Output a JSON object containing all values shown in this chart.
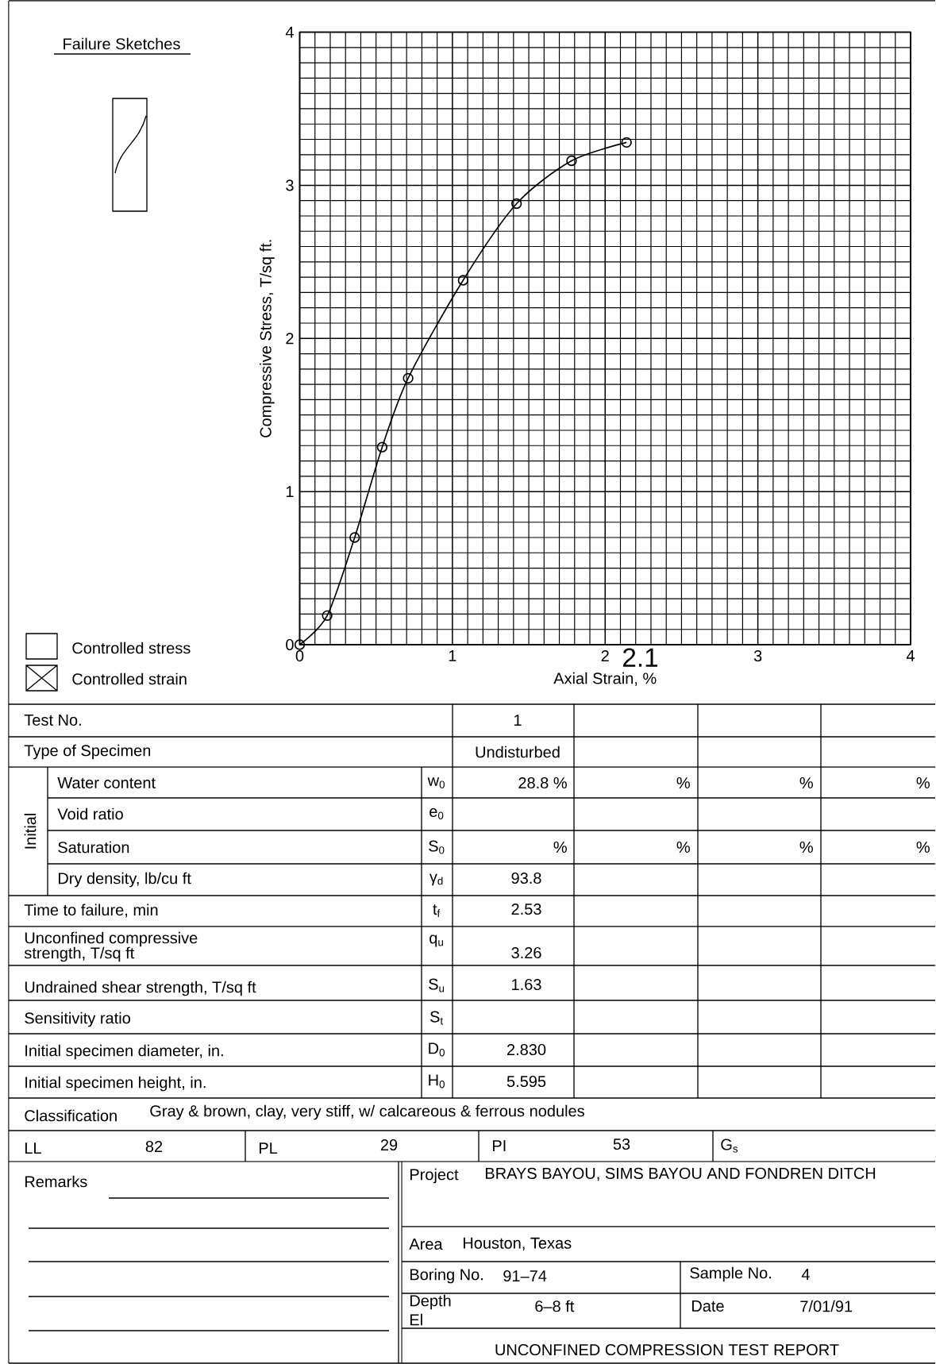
{
  "chart_data": {
    "type": "line",
    "xlabel": "Axial Strain, %",
    "ylabel": "Compressive Stress, T/sq ft.",
    "x": [
      0,
      0.18,
      0.36,
      0.54,
      0.71,
      1.07,
      1.42,
      1.78,
      2.14
    ],
    "series": [
      {
        "color": "#000000",
        "values": [
          0,
          0.19,
          0.7,
          1.29,
          1.74,
          2.38,
          2.88,
          3.16,
          3.28
        ]
      }
    ],
    "marker": "circle",
    "line_style": "solid",
    "grid": true,
    "xlim": [
      0,
      4
    ],
    "ylim": [
      0,
      4
    ],
    "xticks": [
      0,
      1,
      2,
      3,
      4
    ],
    "yticks": [
      0,
      1,
      2,
      3,
      4
    ],
    "annotations": [
      "Failure Sketches",
      "Controlled stress",
      "Controlled strain",
      "Test No.",
      "1",
      "Type of Specimen",
      "Undisturbed",
      "Initial",
      "Water content",
      "w$_{0}$",
      "28.8 %",
      "%",
      "%",
      "%",
      "Void ratio",
      "e$_{0}$",
      "Saturation",
      "S$_{0}$",
      "%",
      "%",
      "%",
      "%",
      "Dry density, lb/cu ft",
      "γ$_{d}$",
      "93.8",
      "Time to failure, min",
      "t$_{f}$",
      "2.53",
      "Unconfined compressive",
      "strength, T/sq ft",
      "q$_{u}$",
      "3.26",
      "Undrained shear strength, T/sq ft",
      "S$_{u}$",
      "1.63",
      "Sensitivity ratio",
      "S$_{t}$",
      "Initial specimen diameter, in.",
      "D$_{0}$",
      "2.830",
      "Initial specimen height, in.",
      "H$_{0}$",
      "5.595",
      "Classification",
      "Gray & brown, clay, very stiff, w/ calcareous & ferrous nodules",
      "LL",
      "82",
      "PL",
      "29",
      "PI",
      "53",
      "G$_{s}$",
      "Remarks",
      "Project",
      "BRAYS BAYOU, SIMS BAYOU AND FONDREN DITCH",
      "Area",
      "Houston, Texas",
      "Boring No.",
      "91–74",
      "Sample No.",
      "4",
      "Depth",
      "El",
      "6–8 ft",
      "Date",
      "7/01/91",
      "UNCONFINED COMPRESSION TEST REPORT",
      "2.1"
    ]
  }
}
